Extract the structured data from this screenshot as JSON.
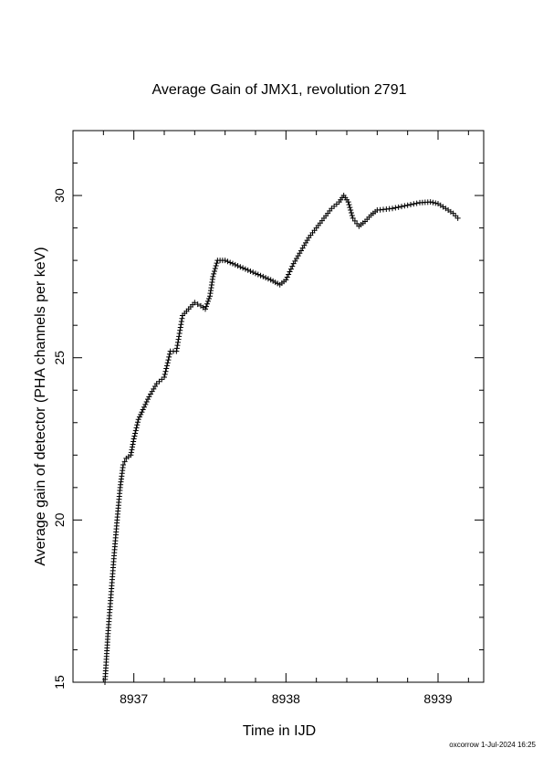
{
  "chart_data": {
    "type": "scatter",
    "title": "Average Gain of JMX1, revolution 2791",
    "xlabel": "Time in IJD",
    "ylabel": "Average gain of detector (PHA channels per keV)",
    "xlim": [
      8936.6,
      8939.3
    ],
    "ylim": [
      15,
      32
    ],
    "xticks": [
      8937,
      8938,
      8939
    ],
    "yticks": [
      15,
      20,
      25,
      30
    ],
    "marker": "plus",
    "series": [
      {
        "points": [
          [
            8936.81,
            15.0
          ],
          [
            8936.83,
            16.5
          ],
          [
            8936.85,
            17.7
          ],
          [
            8936.87,
            18.9
          ],
          [
            8936.89,
            20.0
          ],
          [
            8936.91,
            21.0
          ],
          [
            8936.93,
            21.7
          ],
          [
            8936.95,
            21.9
          ],
          [
            8936.98,
            22.0
          ],
          [
            8937.0,
            22.5
          ],
          [
            8937.03,
            23.1
          ],
          [
            8937.06,
            23.4
          ],
          [
            8937.1,
            23.8
          ],
          [
            8937.15,
            24.2
          ],
          [
            8937.2,
            24.4
          ],
          [
            8937.24,
            25.2
          ],
          [
            8937.28,
            25.2
          ],
          [
            8937.32,
            26.3
          ],
          [
            8937.36,
            26.5
          ],
          [
            8937.4,
            26.7
          ],
          [
            8937.44,
            26.6
          ],
          [
            8937.47,
            26.5
          ],
          [
            8937.5,
            26.9
          ],
          [
            8937.52,
            27.5
          ],
          [
            8937.55,
            28.0
          ],
          [
            8937.6,
            28.0
          ],
          [
            8937.7,
            27.8
          ],
          [
            8937.8,
            27.6
          ],
          [
            8937.9,
            27.4
          ],
          [
            8937.96,
            27.25
          ],
          [
            8938.0,
            27.4
          ],
          [
            8938.05,
            27.9
          ],
          [
            8938.1,
            28.3
          ],
          [
            8938.15,
            28.7
          ],
          [
            8938.2,
            29.0
          ],
          [
            8938.25,
            29.3
          ],
          [
            8938.3,
            29.6
          ],
          [
            8938.35,
            29.8
          ],
          [
            8938.38,
            30.0
          ],
          [
            8938.41,
            29.8
          ],
          [
            8938.44,
            29.3
          ],
          [
            8938.48,
            29.05
          ],
          [
            8938.52,
            29.2
          ],
          [
            8938.56,
            29.4
          ],
          [
            8938.6,
            29.55
          ],
          [
            8938.7,
            29.6
          ],
          [
            8938.8,
            29.7
          ],
          [
            8938.88,
            29.78
          ],
          [
            8938.95,
            29.8
          ],
          [
            8939.0,
            29.75
          ],
          [
            8939.05,
            29.6
          ],
          [
            8939.1,
            29.45
          ],
          [
            8939.13,
            29.3
          ]
        ]
      }
    ]
  },
  "footer": {
    "stamp": "oxcorrow  1-Jul-2024 16:25"
  }
}
